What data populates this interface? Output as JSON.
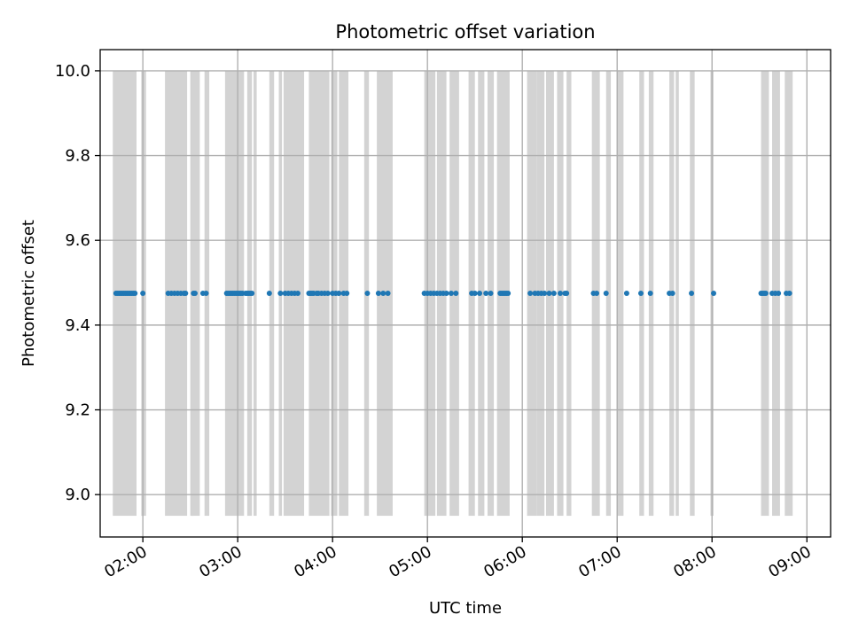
{
  "chart_data": {
    "type": "scatter",
    "title": "Photometric offset variation",
    "xlabel": "UTC time",
    "ylabel": "Photometric offset",
    "x_unit": "UTC time (HH:MM)",
    "xlim": [
      "01:33",
      "09:15"
    ],
    "ylim": [
      8.9,
      10.05
    ],
    "x_ticks": [
      "02:00",
      "03:00",
      "04:00",
      "05:00",
      "06:00",
      "07:00",
      "08:00",
      "09:00"
    ],
    "y_ticks": [
      "9.0",
      "9.2",
      "9.4",
      "9.6",
      "9.8",
      "10.0"
    ],
    "grid": true,
    "colors": {
      "points": "#1f77b4",
      "bands": "#d3d3d3",
      "grid": "#b0b0b0"
    },
    "shaded_band_range": [
      8.95,
      10.0
    ],
    "shaded_intervals": [
      [
        "01:41",
        "01:56"
      ],
      [
        "01:59",
        "02:02"
      ],
      [
        "02:14",
        "02:28"
      ],
      [
        "02:30",
        "02:32"
      ],
      [
        "02:31",
        "02:36"
      ],
      [
        "02:39",
        "02:42"
      ],
      [
        "02:52",
        "03:04"
      ],
      [
        "03:06",
        "03:09"
      ],
      [
        "03:10",
        "03:12"
      ],
      [
        "03:20",
        "03:23"
      ],
      [
        "03:26",
        "03:28"
      ],
      [
        "03:29",
        "03:42"
      ],
      [
        "03:45",
        "03:58"
      ],
      [
        "03:59",
        "04:03"
      ],
      [
        "04:04",
        "04:10"
      ],
      [
        "04:20",
        "04:23"
      ],
      [
        "04:28",
        "04:38"
      ],
      [
        "04:58",
        "05:05"
      ],
      [
        "05:06",
        "05:12"
      ],
      [
        "05:14",
        "05:20"
      ],
      [
        "05:26",
        "05:30"
      ],
      [
        "05:32",
        "05:36"
      ],
      [
        "05:38",
        "05:42"
      ],
      [
        "05:44",
        "05:52"
      ],
      [
        "06:03",
        "06:09"
      ],
      [
        "06:09",
        "06:14"
      ],
      [
        "06:15",
        "06:20"
      ],
      [
        "06:22",
        "06:26"
      ],
      [
        "06:28",
        "06:31"
      ],
      [
        "06:44",
        "06:49"
      ],
      [
        "06:53",
        "06:56"
      ],
      [
        "07:00",
        "07:04"
      ],
      [
        "07:14",
        "07:17"
      ],
      [
        "07:20",
        "07:23"
      ],
      [
        "07:33",
        "07:36"
      ],
      [
        "07:37",
        "07:39"
      ],
      [
        "07:46",
        "07:49"
      ],
      [
        "07:59",
        "08:01"
      ],
      [
        "08:31",
        "08:36"
      ],
      [
        "08:38",
        "08:43"
      ],
      [
        "08:46",
        "08:51"
      ]
    ],
    "series": [
      {
        "x": [
          "01:43",
          "01:44",
          "01:45",
          "01:46",
          "01:47",
          "01:48",
          "01:49",
          "01:50",
          "01:51",
          "01:52",
          "01:53",
          "01:54",
          "01:55",
          "02:00",
          "02:16",
          "02:18",
          "02:20",
          "02:22",
          "02:24",
          "02:26",
          "02:27",
          "02:32",
          "02:33",
          "02:38",
          "02:40",
          "02:53",
          "02:54",
          "02:55",
          "02:56",
          "02:57",
          "02:58",
          "02:59",
          "03:00",
          "03:01",
          "03:02",
          "03:03",
          "03:05",
          "03:06",
          "03:07",
          "03:08",
          "03:09",
          "03:20",
          "03:27",
          "03:30",
          "03:32",
          "03:34",
          "03:36",
          "03:38",
          "03:45",
          "03:46",
          "03:47",
          "03:48",
          "03:50",
          "03:51",
          "03:53",
          "03:55",
          "03:57",
          "04:00",
          "04:02",
          "04:04",
          "04:07",
          "04:09",
          "04:22",
          "04:29",
          "04:32",
          "04:35",
          "04:58",
          "05:00",
          "05:02",
          "05:04",
          "05:06",
          "05:08",
          "05:10",
          "05:12",
          "05:15",
          "05:18",
          "05:28",
          "05:30",
          "05:33",
          "05:37",
          "05:40",
          "05:46",
          "05:47",
          "05:48",
          "05:49",
          "05:50",
          "05:51",
          "06:05",
          "06:08",
          "06:10",
          "06:12",
          "06:14",
          "06:17",
          "06:20",
          "06:24",
          "06:27",
          "06:28",
          "06:45",
          "06:47",
          "06:53",
          "07:06",
          "07:15",
          "07:21",
          "07:33",
          "07:35",
          "07:47",
          "08:01",
          "08:31",
          "08:32",
          "08:33",
          "08:34",
          "08:38",
          "08:40",
          "08:42",
          "08:47",
          "08:49"
        ],
        "y": [
          9.475,
          9.475,
          9.475,
          9.475,
          9.475,
          9.475,
          9.475,
          9.475,
          9.475,
          9.475,
          9.475,
          9.475,
          9.475,
          9.475,
          9.475,
          9.475,
          9.475,
          9.475,
          9.475,
          9.475,
          9.475,
          9.475,
          9.475,
          9.475,
          9.475,
          9.475,
          9.475,
          9.475,
          9.475,
          9.475,
          9.475,
          9.475,
          9.475,
          9.475,
          9.475,
          9.475,
          9.475,
          9.475,
          9.475,
          9.475,
          9.475,
          9.475,
          9.475,
          9.475,
          9.475,
          9.475,
          9.475,
          9.475,
          9.475,
          9.475,
          9.475,
          9.475,
          9.475,
          9.475,
          9.475,
          9.475,
          9.475,
          9.475,
          9.475,
          9.475,
          9.475,
          9.475,
          9.475,
          9.475,
          9.475,
          9.475,
          9.475,
          9.475,
          9.475,
          9.475,
          9.475,
          9.475,
          9.475,
          9.475,
          9.475,
          9.475,
          9.475,
          9.475,
          9.475,
          9.475,
          9.475,
          9.475,
          9.475,
          9.475,
          9.475,
          9.475,
          9.475,
          9.475,
          9.475,
          9.475,
          9.475,
          9.475,
          9.475,
          9.475,
          9.475,
          9.475,
          9.475,
          9.475,
          9.475,
          9.475,
          9.475,
          9.475,
          9.475,
          9.475,
          9.475,
          9.475,
          9.475,
          9.475,
          9.475,
          9.475,
          9.475,
          9.475,
          9.475,
          9.475,
          9.475,
          9.475
        ]
      }
    ]
  }
}
